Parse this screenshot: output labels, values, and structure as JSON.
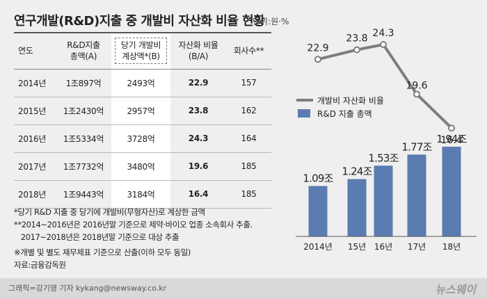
{
  "title": "연구개발(R&D)지출 중 개발비 자산화 비율 현황",
  "unit": "단위:원·%",
  "table": {
    "headers": [
      "연도",
      "R&D지출\n총액(A)",
      "당기 개발비\n계상액*(B)",
      "자산화 비율\n(B/A)",
      "회사수**"
    ],
    "rows": [
      [
        "2014년",
        "1조897억",
        "2493억",
        "22.9",
        "157"
      ],
      [
        "2015년",
        "1조2430억",
        "2957억",
        "23.8",
        "162"
      ],
      [
        "2016년",
        "1조5334억",
        "3728억",
        "24.3",
        "164"
      ],
      [
        "2017년",
        "1조7732억",
        "3480억",
        "19.6",
        "185"
      ],
      [
        "2018년",
        "1조9443억",
        "3184억",
        "16.4",
        "185"
      ]
    ]
  },
  "notes": [
    "*당기 R&D 지출 중 당기에 개발비(무형자산)로 계상한 금액",
    "**2014~2016년은 2016년말 기준으로 제약·바이오 업종 소속회사 추출.",
    "   2017~2018년은 2018년말 기준으로 대상 추출",
    "※개별 및 별도 재무제표 기준으로 산출(이하 모두 동일)",
    "자료:금융감독원"
  ],
  "colors": {
    "bar": "#5b7cb0",
    "line": "#7d7d7d"
  },
  "chart_data": {
    "type": "bar+line",
    "categories": [
      "2014년",
      "15년",
      "16년",
      "17년",
      "18년"
    ],
    "series": [
      {
        "name": "개발비 자산화 비율",
        "type": "line",
        "values": [
          22.9,
          23.8,
          24.3,
          19.6,
          16.4
        ],
        "labels": [
          "22.9",
          "23.8",
          "24.3",
          "19.6",
          "16.4"
        ]
      },
      {
        "name": "R&D 지출 총액",
        "type": "bar",
        "values": [
          1.09,
          1.24,
          1.53,
          1.77,
          1.94
        ],
        "labels": [
          "1.09조",
          "1.24조",
          "1.53조",
          "1.77조",
          "1.94조"
        ]
      }
    ],
    "legend_position": "middle-left"
  },
  "footer": {
    "credit": "그래픽=강기영 기자 kykang@newsway.co.kr",
    "logo": "뉴스웨이"
  }
}
